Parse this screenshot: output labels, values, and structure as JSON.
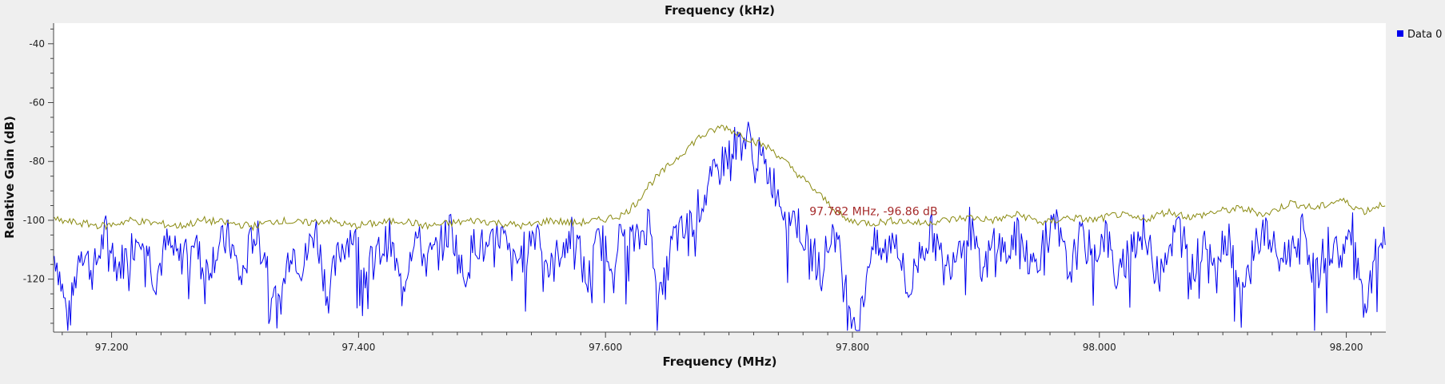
{
  "chart_data": {
    "type": "line",
    "title": "Frequency (kHz)",
    "xlabel": "Frequency (MHz)",
    "ylabel": "Relative Gain (dB)",
    "xlim": [
      97.153,
      98.232
    ],
    "ylim": [
      -138,
      -33
    ],
    "xticks": [
      {
        "value": 97.2,
        "label": "97.200"
      },
      {
        "value": 97.4,
        "label": "97.400"
      },
      {
        "value": 97.6,
        "label": "97.600"
      },
      {
        "value": 97.8,
        "label": "97.800"
      },
      {
        "value": 98.0,
        "label": "98.000"
      },
      {
        "value": 98.2,
        "label": "98.200"
      }
    ],
    "yticks": [
      {
        "value": -40,
        "label": "-40"
      },
      {
        "value": -60,
        "label": "-60"
      },
      {
        "value": -80,
        "label": "-80"
      },
      {
        "value": -100,
        "label": "-100"
      },
      {
        "value": -120,
        "label": "-120"
      }
    ],
    "grid": false,
    "legend": {
      "position": "top-right",
      "entries": [
        {
          "label": "Data 0",
          "color": "#0000ee"
        }
      ]
    },
    "series": [
      {
        "name": "Data 0",
        "color": "#0000ee",
        "x": [
          97.155,
          97.165,
          97.175,
          97.185,
          97.195,
          97.205,
          97.215,
          97.225,
          97.235,
          97.245,
          97.255,
          97.265,
          97.275,
          97.285,
          97.295,
          97.305,
          97.315,
          97.325,
          97.335,
          97.345,
          97.355,
          97.365,
          97.375,
          97.385,
          97.395,
          97.405,
          97.415,
          97.425,
          97.435,
          97.445,
          97.455,
          97.465,
          97.475,
          97.485,
          97.495,
          97.505,
          97.515,
          97.525,
          97.535,
          97.545,
          97.555,
          97.565,
          97.575,
          97.585,
          97.595,
          97.605,
          97.615,
          97.625,
          97.635,
          97.645,
          97.655,
          97.665,
          97.675,
          97.685,
          97.695,
          97.705,
          97.715,
          97.725,
          97.735,
          97.745,
          97.755,
          97.765,
          97.775,
          97.785,
          97.795,
          97.805,
          97.815,
          97.825,
          97.835,
          97.845,
          97.855,
          97.865,
          97.875,
          97.885,
          97.895,
          97.905,
          97.915,
          97.925,
          97.935,
          97.945,
          97.955,
          97.965,
          97.975,
          97.985,
          97.995,
          98.005,
          98.015,
          98.025,
          98.035,
          98.045,
          98.055,
          98.065,
          98.075,
          98.085,
          98.095,
          98.105,
          98.115,
          98.125,
          98.135,
          98.145,
          98.155,
          98.165,
          98.175,
          98.185,
          98.195,
          98.205,
          98.215,
          98.225,
          98.231
        ],
        "y": [
          -112,
          -135,
          -108,
          -118,
          -104,
          -116,
          -110,
          -102,
          -120,
          -108,
          -114,
          -104,
          -118,
          -110,
          -106,
          -121,
          -104,
          -112,
          -132,
          -108,
          -116,
          -102,
          -126,
          -110,
          -104,
          -118,
          -112,
          -106,
          -124,
          -104,
          -114,
          -110,
          -102,
          -120,
          -106,
          -112,
          -104,
          -116,
          -110,
          -102,
          -118,
          -108,
          -104,
          -122,
          -106,
          -112,
          -104,
          -108,
          -100,
          -128,
          -106,
          -104,
          -96,
          -88,
          -80,
          -74,
          -72,
          -79,
          -86,
          -96,
          -100,
          -110,
          -116,
          -102,
          -124,
          -138,
          -108,
          -112,
          -104,
          -126,
          -110,
          -104,
          -118,
          -108,
          -102,
          -120,
          -106,
          -112,
          -104,
          -116,
          -108,
          -102,
          -118,
          -106,
          -112,
          -104,
          -122,
          -108,
          -104,
          -116,
          -110,
          -102,
          -118,
          -106,
          -112,
          -104,
          -130,
          -108,
          -104,
          -114,
          -110,
          -102,
          -120,
          -108,
          -112,
          -104,
          -134,
          -110,
          -106
        ]
      },
      {
        "name": "",
        "color": "#8a8a10",
        "x": [
          97.155,
          97.175,
          97.195,
          97.215,
          97.235,
          97.255,
          97.275,
          97.295,
          97.315,
          97.335,
          97.355,
          97.375,
          97.395,
          97.415,
          97.435,
          97.455,
          97.475,
          97.495,
          97.515,
          97.535,
          97.555,
          97.575,
          97.595,
          97.615,
          97.625,
          97.635,
          97.645,
          97.655,
          97.665,
          97.675,
          97.685,
          97.695,
          97.705,
          97.715,
          97.725,
          97.735,
          97.745,
          97.755,
          97.765,
          97.775,
          97.785,
          97.795,
          97.815,
          97.835,
          97.855,
          97.875,
          97.895,
          97.915,
          97.935,
          97.955,
          97.975,
          97.995,
          98.015,
          98.035,
          98.055,
          98.075,
          98.095,
          98.115,
          98.135,
          98.155,
          98.175,
          98.195,
          98.215,
          98.231
        ],
        "y": [
          -100,
          -101,
          -102,
          -100,
          -101,
          -102,
          -100,
          -101,
          -102,
          -100,
          -101,
          -100,
          -102,
          -101,
          -100,
          -102,
          -101,
          -100,
          -101,
          -102,
          -100,
          -101,
          -100,
          -98,
          -94,
          -88,
          -84,
          -80,
          -76,
          -72,
          -70,
          -68,
          -70,
          -72,
          -74,
          -76,
          -80,
          -84,
          -88,
          -92,
          -96,
          -100,
          -101,
          -100,
          -101,
          -100,
          -99,
          -100,
          -98,
          -101,
          -99,
          -100,
          -98,
          -100,
          -97,
          -99,
          -97,
          -96,
          -98,
          -94,
          -96,
          -93,
          -97,
          -94
        ]
      }
    ],
    "annotations": [
      {
        "text": "97.782 MHz, -96.86 dB",
        "x": 97.782,
        "y": -96.86,
        "color": "#a52a2a"
      }
    ]
  }
}
